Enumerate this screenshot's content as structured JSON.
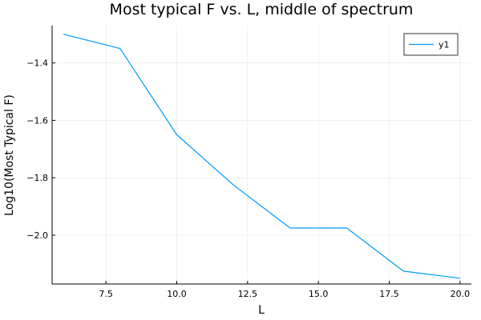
{
  "chart_data": {
    "type": "line",
    "title": "Most typical F vs. L, middle of spectrum",
    "xlabel": "L",
    "ylabel": "Log10(Most Typical F)",
    "xlim": [
      5.6,
      20.4
    ],
    "ylim": [
      -2.17,
      -1.27
    ],
    "xticks": [
      7.5,
      10.0,
      12.5,
      15.0,
      17.5,
      20.0
    ],
    "xtick_labels": [
      "7.5",
      "10.0",
      "12.5",
      "15.0",
      "17.5",
      "20.0"
    ],
    "yticks": [
      -1.4,
      -1.6,
      -1.8,
      -2.0
    ],
    "ytick_labels": [
      "−1.4",
      "−1.6",
      "−1.8",
      "−2.0"
    ],
    "grid": true,
    "legend_position": "top-right",
    "series": [
      {
        "name": "y1",
        "color": "#009AFA",
        "x": [
          6,
          8,
          10,
          12,
          14,
          16,
          18,
          20
        ],
        "y": [
          -1.3,
          -1.35,
          -1.65,
          -1.825,
          -1.975,
          -1.975,
          -2.125,
          -2.15
        ]
      }
    ]
  }
}
